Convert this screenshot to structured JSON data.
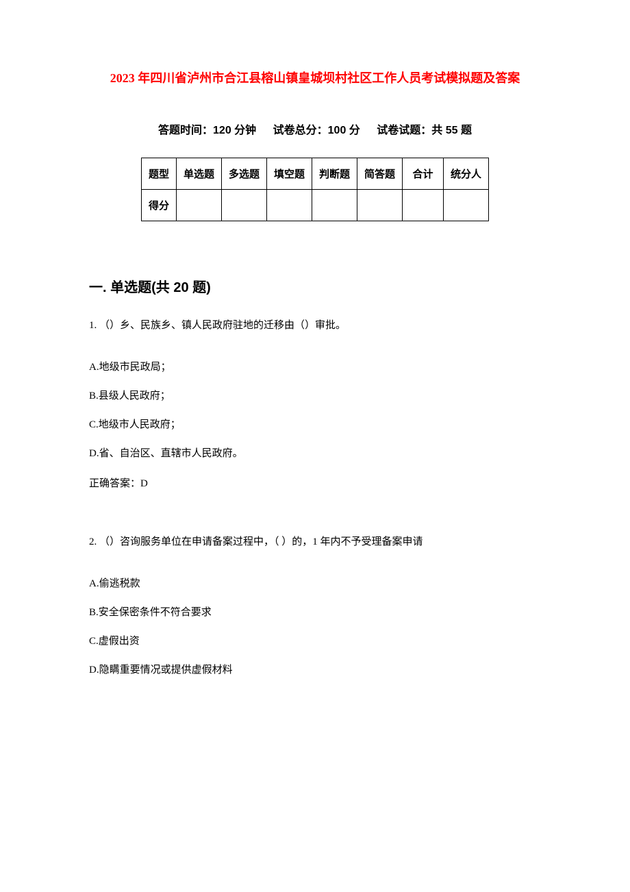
{
  "title": "2023 年四川省泸州市合江县榕山镇皇城坝村社区工作人员考试模拟题及答案",
  "exam_info": {
    "time_label": "答题时间：120 分钟",
    "total_score_label": "试卷总分：100 分",
    "question_count_label": "试卷试题：共 55 题"
  },
  "score_table": {
    "columns": [
      "题型",
      "单选题",
      "多选题",
      "填空题",
      "判断题",
      "简答题",
      "合计",
      "统分人"
    ],
    "score_row_label": "得分",
    "border_color": "#000000",
    "cell_padding": 12,
    "font_size": 15
  },
  "section1": {
    "heading": "一. 单选题(共 20 题)",
    "questions": [
      {
        "number": "1.",
        "text": "（）乡、民族乡、镇人民政府驻地的迁移由（）审批。",
        "options": [
          "A.地级市民政局；",
          "B.县级人民政府；",
          "C.地级市人民政府；",
          "D.省、自治区、直辖市人民政府。"
        ],
        "answer": "正确答案：D"
      },
      {
        "number": "2.",
        "text": "（）咨询服务单位在申请备案过程中，（ ）的，1 年内不予受理备案申请",
        "options": [
          "A.偷逃税款",
          "B.安全保密条件不符合要求",
          "C.虚假出资",
          "D.隐瞒重要情况或提供虚假材料"
        ],
        "answer": ""
      }
    ]
  },
  "colors": {
    "title_color": "#ff0000",
    "text_color": "#000000",
    "background_color": "#ffffff"
  },
  "typography": {
    "title_fontsize": 18,
    "info_fontsize": 16,
    "heading_fontsize": 20,
    "body_fontsize": 15
  }
}
